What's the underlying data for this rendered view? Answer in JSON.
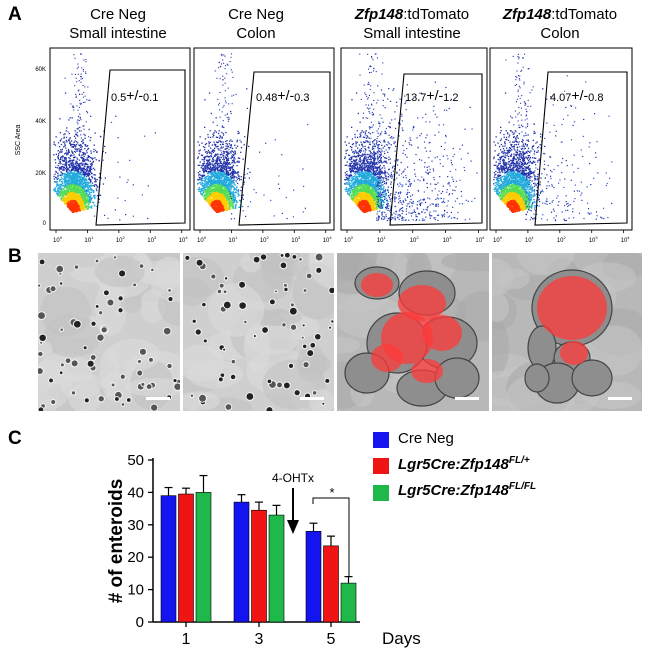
{
  "panel_labels": {
    "a": "A",
    "b": "B",
    "c": "C"
  },
  "panel_a": {
    "plots": [
      {
        "title_line1": "Cre Neg",
        "title_line1_italic": "",
        "title_line2": "Small intestine",
        "gate_mean": "0.5",
        "gate_pm": "+/-",
        "gate_sd": "0.1"
      },
      {
        "title_line1": "Cre Neg",
        "title_line1_italic": "",
        "title_line2": "Colon",
        "gate_mean": "0.48",
        "gate_pm": "+/-",
        "gate_sd": "0.3"
      },
      {
        "title_line1": ":tdTomato",
        "title_line1_italic": "Zfp148",
        "title_line2": "Small intestine",
        "gate_mean": "13.7",
        "gate_pm": "+/-",
        "gate_sd": "1.2"
      },
      {
        "title_line1": ":tdTomato",
        "title_line1_italic": "Zfp148",
        "title_line2": "Colon",
        "gate_mean": "4.07",
        "gate_pm": "+/-",
        "gate_sd": "0.8"
      }
    ],
    "ylabel": "SSC Area",
    "y_ticks": [
      "0",
      "20K",
      "40K",
      "60K"
    ],
    "x_ticks": [
      "0",
      "1",
      "2",
      "3",
      "4"
    ],
    "x_tick_base": "10"
  },
  "panel_b": {
    "images": [
      "brightfield",
      "brightfield",
      "tdtomato-overlay",
      "tdtomato-overlay"
    ]
  },
  "panel_c": {
    "annotation": "4-OHTx",
    "significance": "*",
    "legend": [
      {
        "prefix": "Cre Neg",
        "italic": "",
        "sup": "",
        "color": "#1414f0"
      },
      {
        "prefix": "",
        "italic": "Lgr5Cre:Zfp148",
        "sup": "FL/+",
        "color": "#f01414"
      },
      {
        "prefix": "",
        "italic": "Lgr5Cre:Zfp148",
        "sup": "FL/FL",
        "color": "#1fb84a"
      }
    ]
  },
  "chart_data": {
    "type": "bar",
    "categories": [
      "1",
      "3",
      "5"
    ],
    "xlabel": "Days",
    "ylabel": "# of enteroids",
    "ylim": [
      0,
      50
    ],
    "y_ticks": [
      "0",
      "10",
      "20",
      "30",
      "40",
      "50"
    ],
    "series": [
      {
        "name": "Cre Neg",
        "values": [
          39,
          37,
          28
        ],
        "errors": [
          2.5,
          2.3,
          2.5
        ],
        "color": "#1414f0"
      },
      {
        "name": "Lgr5Cre:Zfp148FL/+",
        "values": [
          39.5,
          34.5,
          23.5
        ],
        "errors": [
          1.8,
          2.5,
          3.0
        ],
        "color": "#f01414"
      },
      {
        "name": "Lgr5Cre:Zfp148FL/FL",
        "values": [
          40,
          33,
          12
        ],
        "errors": [
          5.2,
          3.0,
          2.0
        ],
        "color": "#1fb84a"
      }
    ]
  }
}
